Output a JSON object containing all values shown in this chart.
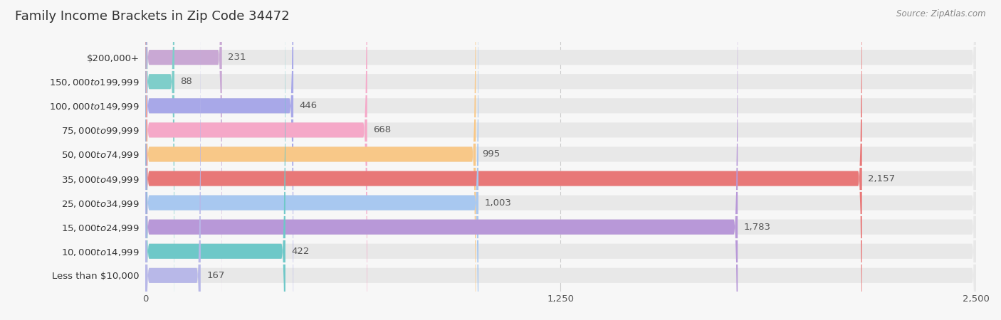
{
  "title": "Family Income Brackets in Zip Code 34472",
  "source": "Source: ZipAtlas.com",
  "categories": [
    "Less than $10,000",
    "$10,000 to $14,999",
    "$15,000 to $24,999",
    "$25,000 to $34,999",
    "$35,000 to $49,999",
    "$50,000 to $74,999",
    "$75,000 to $99,999",
    "$100,000 to $149,999",
    "$150,000 to $199,999",
    "$200,000+"
  ],
  "values": [
    231,
    88,
    446,
    668,
    995,
    2157,
    1003,
    1783,
    422,
    167
  ],
  "colors": [
    "#c9a8d4",
    "#7ececa",
    "#a8a8e8",
    "#f5a8c8",
    "#f8c888",
    "#e87878",
    "#a8c8f0",
    "#b898d8",
    "#6ec8c8",
    "#b8b8e8"
  ],
  "xlim": [
    0,
    2500
  ],
  "xticks": [
    0,
    1250,
    2500
  ],
  "background_color": "#f7f7f7",
  "bar_bg_color": "#e8e8e8",
  "title_fontsize": 13,
  "label_fontsize": 9.5,
  "value_fontsize": 9.5,
  "tick_fontsize": 9.5
}
